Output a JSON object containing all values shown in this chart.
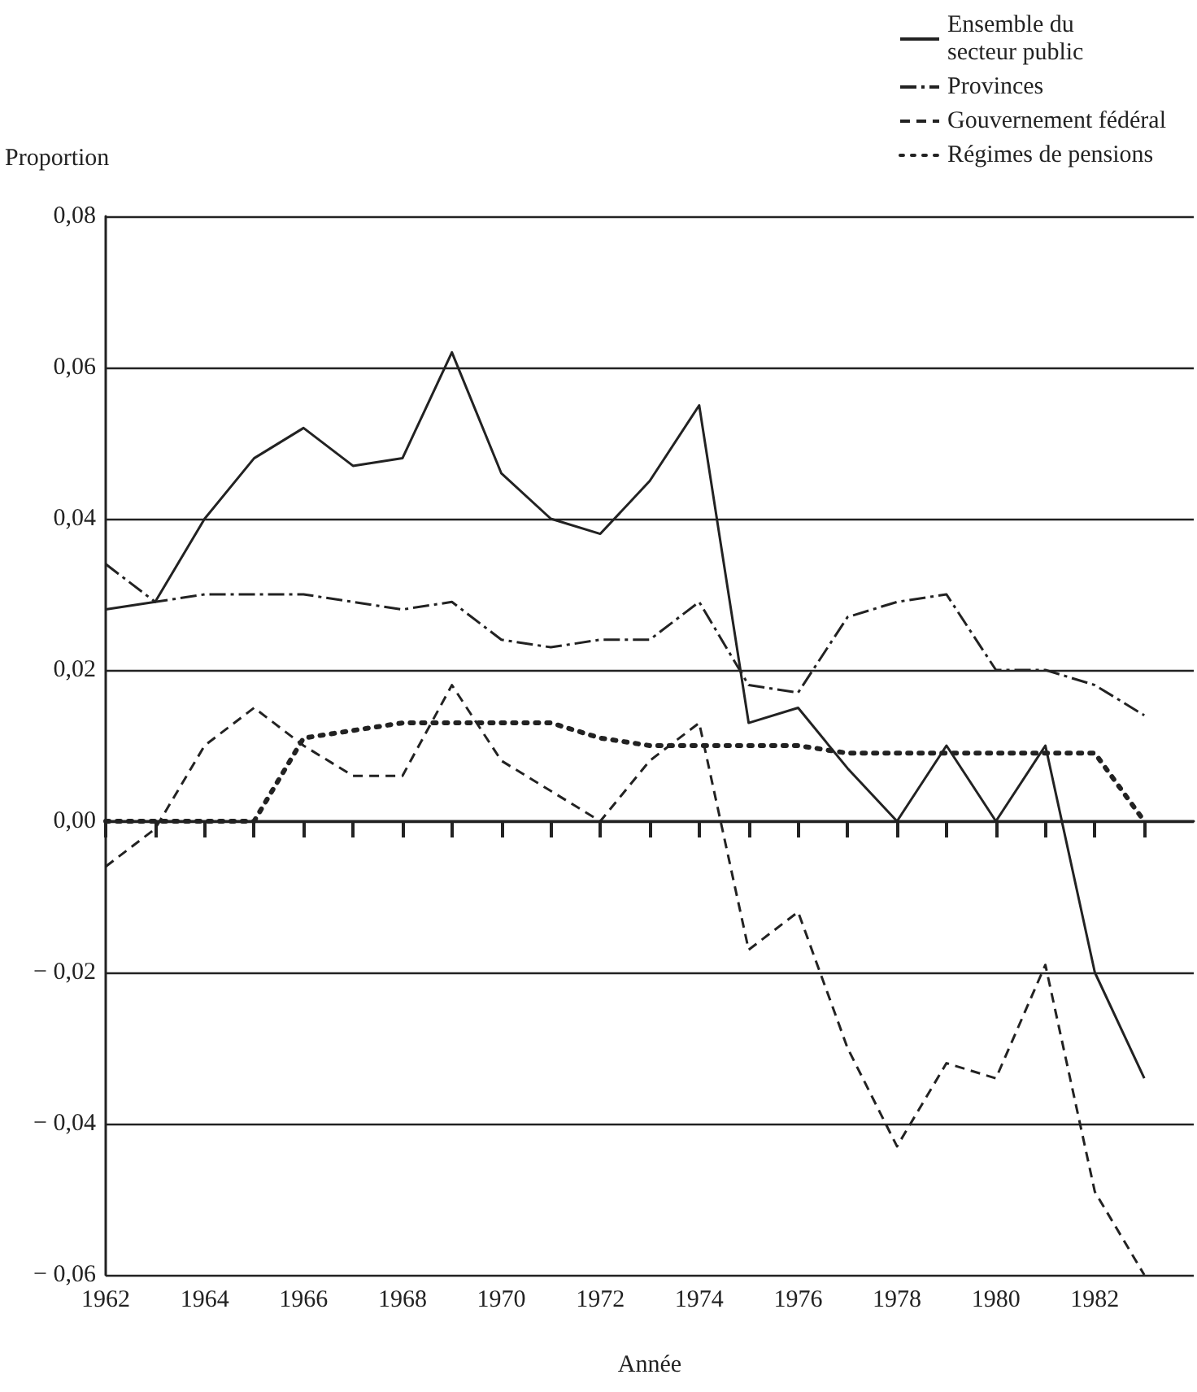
{
  "chart_data": {
    "type": "line",
    "xlabel": "Année",
    "ylabel": "Proportion",
    "x": [
      1962,
      1963,
      1964,
      1965,
      1966,
      1967,
      1968,
      1969,
      1970,
      1971,
      1972,
      1973,
      1974,
      1975,
      1976,
      1977,
      1978,
      1979,
      1980,
      1981,
      1982,
      1983
    ],
    "series": [
      {
        "name": "Ensemble du\nsecteur public",
        "color": "#222222",
        "line_style": "solid",
        "values": [
          0.028,
          0.029,
          0.04,
          0.048,
          0.052,
          0.047,
          0.048,
          0.062,
          0.046,
          0.04,
          0.038,
          0.045,
          0.055,
          0.013,
          0.015,
          0.007,
          0.0,
          0.01,
          0.0,
          0.01,
          -0.02,
          -0.034
        ]
      },
      {
        "name": "Provinces",
        "color": "#222222",
        "line_style": "dashdot",
        "values": [
          0.034,
          0.029,
          0.03,
          0.03,
          0.03,
          0.029,
          0.028,
          0.029,
          0.024,
          0.023,
          0.024,
          0.024,
          0.029,
          0.018,
          0.017,
          0.027,
          0.029,
          0.03,
          0.02,
          0.02,
          0.018,
          0.014
        ]
      },
      {
        "name": "Gouvernement fédéral",
        "color": "#222222",
        "line_style": "dashed",
        "values": [
          -0.006,
          -0.001,
          0.01,
          0.015,
          0.01,
          0.006,
          0.006,
          0.018,
          0.008,
          0.004,
          0.0,
          0.008,
          0.013,
          -0.017,
          -0.012,
          -0.03,
          -0.043,
          -0.032,
          -0.034,
          -0.019,
          -0.049,
          -0.06
        ]
      },
      {
        "name": "Régimes de pensions",
        "color": "#222222",
        "line_style": "dotted",
        "values": [
          0,
          0,
          0,
          0,
          0.011,
          0.012,
          0.013,
          0.013,
          0.013,
          0.013,
          0.011,
          0.01,
          0.01,
          0.01,
          0.01,
          0.009,
          0.009,
          0.009,
          0.009,
          0.009,
          0.009,
          0.0
        ]
      }
    ],
    "xlim": [
      1962,
      1984
    ],
    "xticks": [
      1962,
      {
        "value": 1963,
        "label": null
      },
      1964,
      {
        "value": 1965,
        "label": null
      },
      1966,
      {
        "value": 1967,
        "label": null
      },
      1968,
      {
        "value": 1969,
        "label": null
      },
      1970,
      {
        "value": 1971,
        "label": null
      },
      1972,
      {
        "value": 1973,
        "label": null
      },
      1974,
      {
        "value": 1975,
        "label": null
      },
      1976,
      {
        "value": 1977,
        "label": null
      },
      1978,
      {
        "value": 1979,
        "label": null
      },
      1980,
      {
        "value": 1981,
        "label": null
      },
      1982,
      {
        "value": 1983,
        "label": null
      }
    ],
    "ylim": [
      -0.06,
      0.08
    ],
    "yticks": [
      {
        "value": -0.06,
        "label": "− 0,06"
      },
      {
        "value": -0.04,
        "label": "− 0,04"
      },
      {
        "value": -0.02,
        "label": "− 0,02"
      },
      {
        "value": 0,
        "label": "0,00"
      },
      {
        "value": 0.02,
        "label": "0,02"
      },
      {
        "value": 0.04,
        "label": "0,04"
      },
      {
        "value": 0.06,
        "label": "0,06"
      },
      {
        "value": 0.08,
        "label": "0,08"
      }
    ],
    "grid": "y",
    "legend": "top right",
    "marker": "none"
  }
}
